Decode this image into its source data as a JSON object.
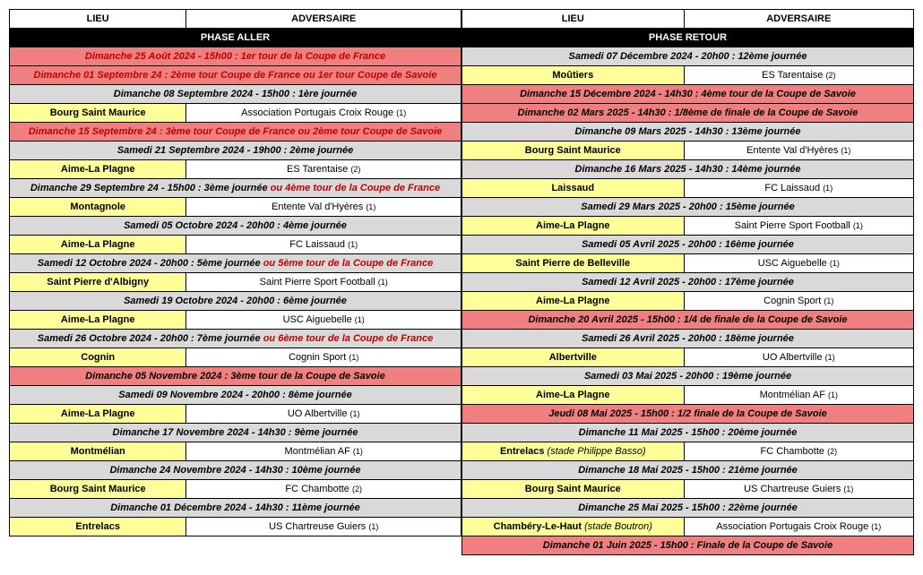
{
  "colors": {
    "yellow": "#ffff99",
    "grey": "#d9d9d9",
    "coral": "#f08080",
    "black": "#000000",
    "white": "#ffffff",
    "accentRed": "#c00000"
  },
  "fonts": {
    "base_size": 11,
    "suffix_size": 9,
    "family": "Arial"
  },
  "left": {
    "header": {
      "lieu": "LIEU",
      "adversaire": "ADVERSAIRE"
    },
    "phase": "PHASE ALLER",
    "rows": [
      {
        "type": "red",
        "text": "Dimanche 25 Août 2024 - 15h00 : 1er tour de la Coupe de France"
      },
      {
        "type": "red",
        "text": "Dimanche 01 Septembre 24 : 2ème tour Coupe de France ou 1er tour Coupe de Savoie"
      },
      {
        "type": "grey",
        "text": "Dimanche 08 Septembre 2024 - 15h00 : 1ère journée"
      },
      {
        "type": "match",
        "lieu": "Bourg Saint Maurice",
        "adv": "Association Portugais Croix Rouge",
        "suf": "(1)"
      },
      {
        "type": "red",
        "text": "Dimanche 15 Septembre 24 : 3ème tour Coupe de France ou 2ème tour Coupe de Savoie"
      },
      {
        "type": "grey",
        "text": "Samedi 21 Septembre 2024 - 19h00 : 2ème journée"
      },
      {
        "type": "match",
        "lieu": "Aime-La Plagne",
        "adv": "ES Tarentaise",
        "suf": "(2)"
      },
      {
        "type": "mix",
        "prefix": "Dimanche 29 Septembre 24 - 15h00 : ",
        "journee": "3ème journée ",
        "or": "ou 4ème tour de la Coupe de France"
      },
      {
        "type": "match",
        "lieu": "Montagnole",
        "adv": "Entente Val d'Hyères",
        "suf": "(1)"
      },
      {
        "type": "grey",
        "text": "Samedi 05 Octobre 2024 - 20h00 : 4ème journée"
      },
      {
        "type": "match",
        "lieu": "Aime-La Plagne",
        "adv": "FC Laissaud",
        "suf": "(1)"
      },
      {
        "type": "mix",
        "prefix": "Samedi 12 Octobre 2024 - 20h00 : ",
        "journee": "5ème journée ",
        "or": "ou 5ème tour de la Coupe de France"
      },
      {
        "type": "match",
        "lieu": "Saint Pierre d'Albigny",
        "adv": "Saint Pierre Sport Football",
        "suf": "(1)"
      },
      {
        "type": "grey",
        "text": "Samedi 19 Octobre 2024 - 20h00 : 6ème journée"
      },
      {
        "type": "match",
        "lieu": "Aime-La Plagne",
        "adv": "USC Aiguebelle",
        "suf": "(1)"
      },
      {
        "type": "mix",
        "prefix": "Samedi 26 Octobre 2024 - 20h00 : ",
        "journee": "7ème journée ",
        "or": "ou 6ème tour de la Coupe de France"
      },
      {
        "type": "match",
        "lieu": "Cognin",
        "adv": "Cognin Sport",
        "suf": "(1)"
      },
      {
        "type": "red-black",
        "text": "Dimanche 05 Novembre 2024 : 3ème tour de la Coupe de Savoie"
      },
      {
        "type": "grey",
        "text": "Samedi 09 Novembre 2024 - 20h00 : 8ème journée"
      },
      {
        "type": "match",
        "lieu": "Aime-La Plagne",
        "adv": "UO Albertville",
        "suf": "(1)"
      },
      {
        "type": "grey",
        "text": "Dimanche 17 Novembre 2024 - 14h30 : 9ème journée"
      },
      {
        "type": "match",
        "lieu": "Montmélian",
        "adv": "Montmélian AF",
        "suf": "(1)"
      },
      {
        "type": "grey",
        "text": "Dimanche 24 Novembre 2024 - 14h30 : 10ème journée"
      },
      {
        "type": "match",
        "lieu": "Bourg Saint Maurice",
        "adv": "FC Chambotte",
        "suf": "(2)"
      },
      {
        "type": "grey",
        "text": "Dimanche 01 Décembre 2024 - 14h30 : 11ème journée"
      },
      {
        "type": "match",
        "lieu": "Entrelacs",
        "adv": "US Chartreuse Guiers",
        "suf": "(1)"
      }
    ]
  },
  "right": {
    "header": {
      "lieu": "LIEU",
      "adversaire": "ADVERSAIRE"
    },
    "phase": "PHASE RETOUR",
    "rows": [
      {
        "type": "grey",
        "text": "Samedi 07 Décembre 2024 - 20h00 : 12ème journée"
      },
      {
        "type": "match",
        "lieu": "Moûtiers",
        "adv": "ES Tarentaise",
        "suf": "(2)"
      },
      {
        "type": "red-black",
        "text": "Dimanche 15 Décembre 2024 - 14h30 : 4ème tour de la Coupe de Savoie"
      },
      {
        "type": "red-black",
        "text": "Dimanche 02 Mars 2025 - 14h30 : 1/8ème de finale de la Coupe de Savoie"
      },
      {
        "type": "grey",
        "text": "Dimanche 09 Mars 2025 - 14h30 : 13ème journée"
      },
      {
        "type": "match",
        "lieu": "Bourg Saint Maurice",
        "adv": "Entente Val d'Hyères",
        "suf": "(1)"
      },
      {
        "type": "grey",
        "text": "Dimanche 16 Mars 2025 - 14h30 : 14ème journée"
      },
      {
        "type": "match",
        "lieu": "Laissaud",
        "adv": "FC Laissaud",
        "suf": "(1)"
      },
      {
        "type": "grey",
        "text": "Samedi 29 Mars 2025 - 20h00 : 15ème journée"
      },
      {
        "type": "match",
        "lieu": "Aime-La Plagne",
        "adv": "Saint Pierre Sport Football",
        "suf": "(1)"
      },
      {
        "type": "grey",
        "text": "Samedi 05 Avril 2025 - 20h00 : 16ème journée"
      },
      {
        "type": "match",
        "lieu": "Saint Pierre de Belleville",
        "adv": "USC Aiguebelle",
        "suf": "(1)"
      },
      {
        "type": "grey",
        "text": "Samedi 12 Avril 2025 - 20h00 : 17ème journée"
      },
      {
        "type": "match",
        "lieu": "Aime-La Plagne",
        "adv": "Cognin Sport",
        "suf": "(1)"
      },
      {
        "type": "red-black",
        "text": "Dimanche 20 Avril 2025 - 15h00 : 1/4 de finale de la Coupe de Savoie"
      },
      {
        "type": "grey",
        "text": "Samedi 26 Avril 2025 - 20h00 : 18ème journée"
      },
      {
        "type": "match",
        "lieu": "Albertville",
        "adv": "UO Albertville",
        "suf": "(1)"
      },
      {
        "type": "grey",
        "text": "Samedi 03 Mai 2025 - 20h00 : 19ème journée"
      },
      {
        "type": "match",
        "lieu": "Aime-La Plagne",
        "adv": "Montmélian AF",
        "suf": "(1)"
      },
      {
        "type": "red-black",
        "text": "Jeudi 08 Mai 2025 - 15h00 : 1/2 finale de la Coupe de Savoie"
      },
      {
        "type": "grey",
        "text": "Dimanche 11 Mai 2025 - 15h00 : 20ème journée"
      },
      {
        "type": "match",
        "lieu": "Entrelacs",
        "lieu_italic": "(stade Philippe Basso)",
        "adv": "FC Chambotte",
        "suf": "(2)"
      },
      {
        "type": "grey",
        "text": "Dimanche 18 Mai 2025 - 15h00 : 21ème journée"
      },
      {
        "type": "match",
        "lieu": "Bourg Saint Maurice",
        "adv": "US Chartreuse Guiers",
        "suf": "(1)"
      },
      {
        "type": "grey",
        "text": "Dimanche 25 Mai 2025 - 15h00 : 22ème journée"
      },
      {
        "type": "match",
        "lieu": "Chambéry-Le-Haut",
        "lieu_italic": "(stade Boutron)",
        "adv": "Association Portugais Croix Rouge",
        "suf": "(1)"
      },
      {
        "type": "red-black",
        "text": "Dimanche 01 Juin 2025 - 15h00 : Finale de la Coupe de Savoie"
      }
    ]
  }
}
